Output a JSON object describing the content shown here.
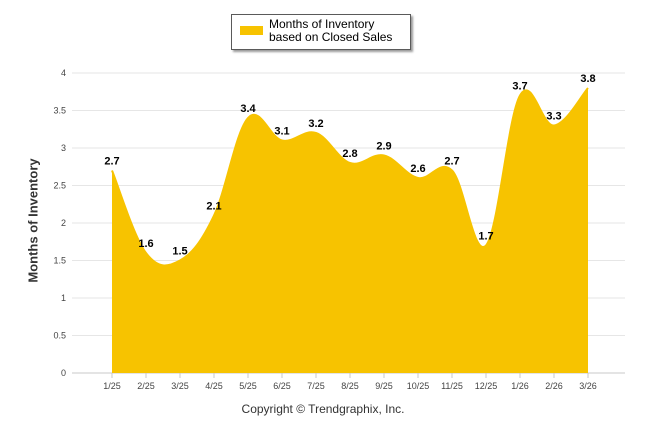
{
  "chart_data": {
    "type": "area",
    "categories": [
      "1/25",
      "2/25",
      "3/25",
      "4/25",
      "5/25",
      "6/25",
      "7/25",
      "8/25",
      "9/25",
      "10/25",
      "11/25",
      "12/25",
      "1/26",
      "2/26",
      "3/26"
    ],
    "series": [
      {
        "name": "Months of Inventory based on Closed Sales",
        "values": [
          2.7,
          1.6,
          1.5,
          2.1,
          3.4,
          3.1,
          3.2,
          2.8,
          2.9,
          2.6,
          2.7,
          1.7,
          3.7,
          3.3,
          3.8
        ],
        "labels": [
          "2.7",
          "1.6",
          "1.5",
          "2.1",
          "3.4",
          "3.1",
          "3.2",
          "2.8",
          "2.9",
          "2.6",
          "2.7",
          "1.7",
          "3.7",
          "3.3",
          "3.8"
        ],
        "color": "#f7c300"
      }
    ],
    "ylabel": "Months of Inventory",
    "xlabel": "",
    "ylim": [
      0,
      4
    ],
    "yticks": [
      "0",
      "0.5",
      "1",
      "1.5",
      "2",
      "2.5",
      "3",
      "3.5",
      "4"
    ],
    "grid": true,
    "legend_position": "top-center"
  },
  "legend": {
    "label": "Months of Inventory based on Closed Sales",
    "color": "#f7c300"
  },
  "footer": {
    "copyright": "Copyright © Trendgraphix, Inc."
  },
  "colors": {
    "grid": "#e6e6e6",
    "axis": "#c8c8c8",
    "fill": "#f7c300"
  }
}
